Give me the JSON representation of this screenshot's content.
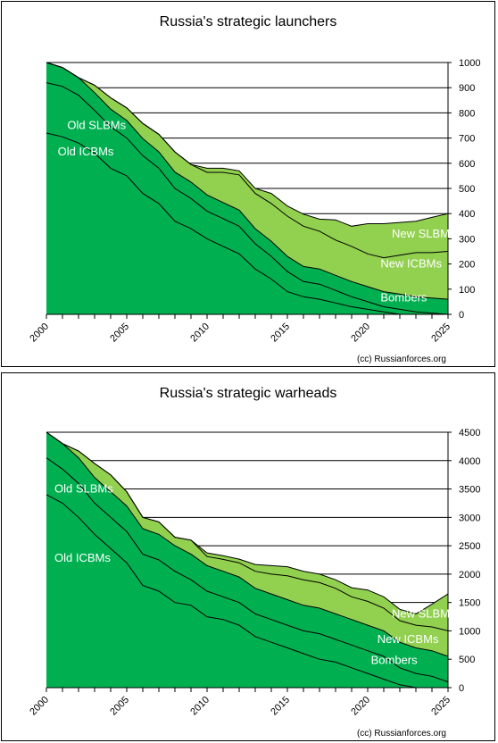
{
  "colors": {
    "dark_green": "#00b050",
    "light_green": "#92d050",
    "line": "#000000",
    "label_on_dark": "#ffffff"
  },
  "chart_data": [
    {
      "type": "area",
      "stacked": true,
      "title": "Russia's strategic launchers",
      "credit": "(cc) Russianforces.org",
      "x_ticks": [
        "2000",
        "2005",
        "2010",
        "2015",
        "2020",
        "2025"
      ],
      "y_ticks": [
        "1000",
        "900",
        "800",
        "700",
        "600",
        "500",
        "400",
        "300",
        "200",
        "100",
        "0"
      ],
      "xlim": [
        2000,
        2025
      ],
      "ylim": [
        0,
        1000
      ],
      "y_axis_position": "right",
      "grid": true,
      "x": [
        2000,
        2001,
        2002,
        2003,
        2004,
        2005,
        2006,
        2007,
        2008,
        2009,
        2010,
        2011,
        2012,
        2013,
        2014,
        2015,
        2016,
        2017,
        2018,
        2019,
        2020,
        2021,
        2022,
        2023,
        2024,
        2025
      ],
      "series": [
        {
          "name": "Old ICBMs",
          "color": "#00b050",
          "label_color": "#ffffff",
          "values": [
            720,
            705,
            680,
            640,
            580,
            550,
            480,
            440,
            370,
            340,
            300,
            270,
            240,
            180,
            140,
            90,
            70,
            60,
            45,
            30,
            20,
            10,
            0,
            0,
            0,
            0
          ]
        },
        {
          "name": "Old SLBMs",
          "color": "#00b050",
          "label_color": "#ffffff",
          "values": [
            200,
            200,
            190,
            170,
            165,
            150,
            150,
            140,
            130,
            120,
            110,
            110,
            110,
            100,
            90,
            80,
            60,
            60,
            50,
            40,
            30,
            20,
            20,
            10,
            5,
            0
          ]
        },
        {
          "name": "Bombers",
          "color": "#00b050",
          "label_color": "#ffffff",
          "values": [
            80,
            75,
            70,
            70,
            70,
            70,
            68,
            65,
            65,
            65,
            64,
            64,
            64,
            60,
            60,
            60,
            60,
            60,
            60,
            60,
            60,
            60,
            60,
            60,
            60,
            60
          ]
        },
        {
          "name": "New ICBMs",
          "color": "#92d050",
          "label_color": "#ffffff",
          "values": [
            0,
            0,
            0,
            30,
            45,
            50,
            60,
            70,
            80,
            70,
            90,
            120,
            140,
            140,
            150,
            160,
            160,
            150,
            140,
            140,
            130,
            135,
            155,
            175,
            180,
            190
          ]
        },
        {
          "name": "New SLBMs",
          "color": "#92d050",
          "label_color": "#ffffff",
          "values": [
            0,
            0,
            0,
            0,
            0,
            0,
            0,
            0,
            0,
            0,
            16,
            16,
            16,
            20,
            40,
            40,
            48,
            48,
            80,
            80,
            120,
            135,
            130,
            125,
            140,
            150
          ]
        }
      ]
    },
    {
      "type": "area",
      "stacked": true,
      "title": "Russia's strategic warheads",
      "credit": "(cc) Russianforces.org",
      "x_ticks": [
        "2000",
        "2005",
        "2010",
        "2015",
        "2020",
        "2025"
      ],
      "y_ticks": [
        "4500",
        "4000",
        "3500",
        "3000",
        "2500",
        "2000",
        "1500",
        "1000",
        "500",
        "0"
      ],
      "xlim": [
        2000,
        2025
      ],
      "ylim": [
        0,
        4500
      ],
      "y_axis_position": "right",
      "grid": true,
      "x": [
        2000,
        2001,
        2002,
        2003,
        2004,
        2005,
        2006,
        2007,
        2008,
        2009,
        2010,
        2011,
        2012,
        2013,
        2014,
        2015,
        2016,
        2017,
        2018,
        2019,
        2020,
        2021,
        2022,
        2023,
        2024,
        2025
      ],
      "series": [
        {
          "name": "Old ICBMs",
          "color": "#00b050",
          "label_color": "#ffffff",
          "values": [
            3400,
            3250,
            3000,
            2700,
            2450,
            2200,
            1800,
            1700,
            1500,
            1450,
            1250,
            1200,
            1100,
            900,
            800,
            700,
            600,
            500,
            450,
            350,
            250,
            150,
            50,
            0,
            0,
            0
          ]
        },
        {
          "name": "Old SLBMs",
          "color": "#00b050",
          "label_color": "#ffffff",
          "values": [
            650,
            600,
            600,
            550,
            550,
            550,
            550,
            550,
            550,
            450,
            450,
            400,
            400,
            400,
            400,
            400,
            400,
            450,
            400,
            400,
            400,
            400,
            300,
            250,
            200,
            100
          ]
        },
        {
          "name": "Bombers",
          "color": "#00b050",
          "label_color": "#ffffff",
          "values": [
            450,
            450,
            450,
            450,
            450,
            450,
            450,
            450,
            450,
            450,
            450,
            450,
            450,
            450,
            450,
            450,
            450,
            450,
            450,
            450,
            450,
            450,
            450,
            450,
            450,
            450
          ]
        },
        {
          "name": "New ICBMs",
          "color": "#92d050",
          "label_color": "#ffffff",
          "values": [
            0,
            0,
            120,
            250,
            300,
            250,
            200,
            220,
            150,
            250,
            160,
            210,
            250,
            300,
            350,
            420,
            450,
            450,
            450,
            400,
            420,
            400,
            380,
            400,
            420,
            450
          ]
        },
        {
          "name": "New SLBMs",
          "color": "#92d050",
          "label_color": "#ffffff",
          "values": [
            0,
            0,
            0,
            0,
            0,
            0,
            0,
            0,
            0,
            0,
            64,
            64,
            64,
            120,
            150,
            160,
            150,
            150,
            150,
            160,
            200,
            200,
            200,
            200,
            400,
            650
          ]
        }
      ]
    }
  ]
}
